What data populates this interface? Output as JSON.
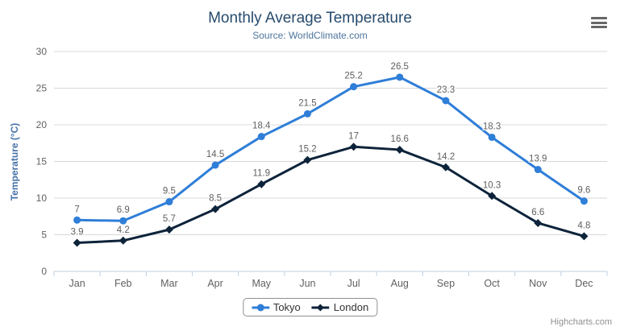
{
  "header": {
    "title": "Monthly Average Temperature",
    "subtitle": "Source: WorldClimate.com"
  },
  "credits": {
    "label": "Highcharts.com"
  },
  "export_menu": {
    "icon": "hamburger-icon"
  },
  "chart_data": {
    "type": "line",
    "title": "Monthly Average Temperature",
    "subtitle": "Source: WorldClimate.com",
    "categories": [
      "Jan",
      "Feb",
      "Mar",
      "Apr",
      "May",
      "Jun",
      "Jul",
      "Aug",
      "Sep",
      "Oct",
      "Nov",
      "Dec"
    ],
    "xlabel": "",
    "ylabel": "Temperature (°C)",
    "ylim": [
      0,
      30
    ],
    "y_ticks": [
      0,
      5,
      10,
      15,
      20,
      25,
      30
    ],
    "grid": true,
    "legend_position": "bottom",
    "data_labels": true,
    "series": [
      {
        "name": "Tokyo",
        "color": "#2f7ed8",
        "marker": "circle",
        "values": [
          7,
          6.9,
          9.5,
          14.5,
          18.4,
          21.5,
          25.2,
          26.5,
          23.3,
          18.3,
          13.9,
          9.6
        ]
      },
      {
        "name": "London",
        "color": "#0d233a",
        "marker": "diamond",
        "values": [
          3.9,
          4.2,
          5.7,
          8.5,
          11.9,
          15.2,
          17,
          16.6,
          14.2,
          10.3,
          6.6,
          4.8
        ]
      }
    ],
    "style_colors": {
      "grid_line": "#d8d8d8",
      "axis_line": "#c0d0e0",
      "axis_label": "#606060",
      "data_label": "#606060"
    }
  }
}
